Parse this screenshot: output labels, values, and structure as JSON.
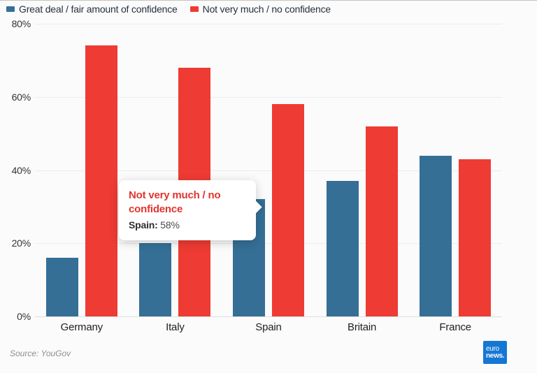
{
  "chart_data": {
    "type": "bar",
    "categories": [
      "Germany",
      "Italy",
      "Spain",
      "Britain",
      "France"
    ],
    "series": [
      {
        "name": "Great deal / fair amount of confidence",
        "color": "#356F96",
        "values": [
          16,
          20,
          32,
          37,
          44
        ]
      },
      {
        "name": "Not very much / no confidence",
        "color": "#EE3B33",
        "values": [
          74,
          68,
          58,
          52,
          43
        ]
      }
    ],
    "xlabel": "",
    "ylabel": "",
    "ylim": [
      0,
      80
    ],
    "ytick_values": [
      0,
      20,
      40,
      60,
      80
    ],
    "ytick_labels": [
      "0%",
      "20%",
      "40%",
      "60%",
      "80%"
    ],
    "grid": true,
    "legend_position": "top",
    "value_format": "percent"
  },
  "tooltip": {
    "title": "Not very much / no confidence",
    "title_color": "#E0352D",
    "category_label": "Spain:",
    "value": "58%"
  },
  "footer": {
    "source": "Source: YouGov",
    "logo_line1": "euro",
    "logo_line2": "news.",
    "logo_bg": "#1577D4"
  },
  "colors": {
    "background": "#fbfbfb",
    "gridline": "#ececec",
    "axis_text": "#333333",
    "legend_text": "#25303e"
  }
}
